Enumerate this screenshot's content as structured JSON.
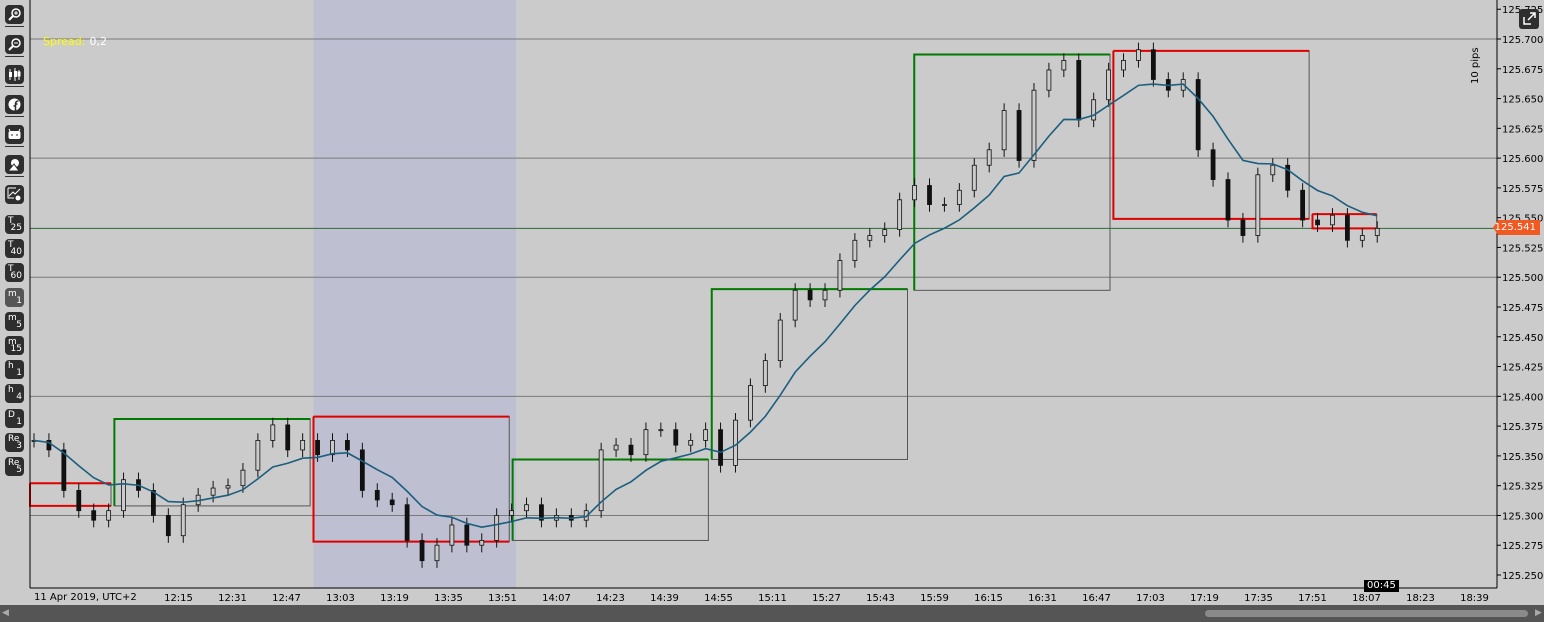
{
  "toolbar": {
    "buttons": [
      {
        "name": "zoom-in-icon"
      },
      {
        "name": "zoom-out-icon"
      },
      {
        "name": "candlestick-icon"
      },
      {
        "name": "facebook-icon"
      },
      {
        "name": "robot-icon"
      },
      {
        "name": "shapes-icon"
      },
      {
        "name": "chart-settings-icon"
      },
      {
        "top": "T",
        "sub": "25"
      },
      {
        "top": "T",
        "sub": "40"
      },
      {
        "top": "T",
        "sub": "60"
      },
      {
        "top": "m",
        "sub": "1",
        "selected": true
      },
      {
        "top": "m",
        "sub": "5"
      },
      {
        "top": "m",
        "sub": "15"
      },
      {
        "top": "h",
        "sub": "1"
      },
      {
        "top": "h",
        "sub": "4"
      },
      {
        "top": "D",
        "sub": "1"
      },
      {
        "top": "Re",
        "sub": "3"
      },
      {
        "top": "Re",
        "sub": "5"
      }
    ]
  },
  "spread": {
    "label": "Spread:",
    "value": "0,2"
  },
  "scale_label": "10 pips",
  "current_price": "125.541",
  "countdown": "00:45",
  "date_label": "11 Apr 2019, UTC+2",
  "colors": {
    "background": "#cbcbcb",
    "bull_box": "#007a00",
    "bear_box": "#e00000",
    "ma": "#1b5e7e",
    "price_tag": "#f05a22",
    "highlight": "#bfbfd2"
  },
  "chart_data": {
    "type": "candlestick",
    "x_start": "11:31",
    "x_end": "18:11",
    "interval": "1m",
    "ylim": [
      125.243,
      125.733
    ],
    "y_ticks": [
      "125.725",
      "125.700",
      "125.675",
      "125.650",
      "125.625",
      "125.600",
      "125.575",
      "125.550",
      "125.525",
      "125.500",
      "125.475",
      "125.450",
      "125.425",
      "125.400",
      "125.375",
      "125.350",
      "125.325",
      "125.300",
      "125.275",
      "125.250"
    ],
    "x_ticks": [
      "12:15",
      "12:31",
      "12:47",
      "13:03",
      "13:19",
      "13:35",
      "13:51",
      "14:07",
      "14:23",
      "14:39",
      "14:55",
      "15:11",
      "15:27",
      "15:43",
      "15:59",
      "16:15",
      "16:31",
      "16:47",
      "17:03",
      "17:19",
      "17:35",
      "17:51",
      "18:07",
      "18:23",
      "18:39"
    ],
    "closes": [
      125.363,
      125.355,
      125.321,
      125.304,
      125.296,
      125.304,
      125.33,
      125.321,
      125.3,
      125.283,
      125.309,
      125.317,
      125.323,
      125.325,
      125.338,
      125.363,
      125.376,
      125.355,
      125.363,
      125.351,
      125.363,
      125.355,
      125.321,
      125.313,
      125.309,
      125.279,
      125.262,
      125.275,
      125.292,
      125.275,
      125.279,
      125.3,
      125.304,
      125.309,
      125.296,
      125.3,
      125.296,
      125.304,
      125.355,
      125.359,
      125.351,
      125.372,
      125.372,
      125.359,
      125.363,
      125.372,
      125.342,
      125.38,
      125.409,
      125.43,
      125.464,
      125.489,
      125.481,
      125.489,
      125.514,
      125.531,
      125.535,
      125.54,
      125.565,
      125.577,
      125.561,
      125.561,
      125.573,
      125.594,
      125.607,
      125.64,
      125.598,
      125.657,
      125.674,
      125.682,
      125.632,
      125.649,
      125.674,
      125.682,
      125.691,
      125.666,
      125.657,
      125.666,
      125.607,
      125.582,
      125.548,
      125.535,
      125.586,
      125.594,
      125.573,
      125.548,
      125.544,
      125.552,
      125.531,
      125.535,
      125.541
    ],
    "gridlines": [
      125.7,
      125.6,
      125.5,
      125.4,
      125.3
    ],
    "highlight": {
      "from": "12:55",
      "to": "13:55"
    },
    "boxes": [
      {
        "dir": "down",
        "from": "11:31",
        "to": "11:55",
        "high": 125.327,
        "low": 125.308
      },
      {
        "dir": "up",
        "from": "11:56",
        "to": "12:54",
        "high": 125.381,
        "low": 125.308
      },
      {
        "dir": "down",
        "from": "12:55",
        "to": "13:53",
        "high": 125.383,
        "low": 125.278
      },
      {
        "dir": "up",
        "from": "13:54",
        "to": "14:52",
        "high": 125.347,
        "low": 125.279
      },
      {
        "dir": "up",
        "from": "14:53",
        "to": "15:51",
        "high": 125.49,
        "low": 125.347
      },
      {
        "dir": "up",
        "from": "15:53",
        "to": "16:51",
        "high": 125.687,
        "low": 125.489
      },
      {
        "dir": "down",
        "from": "16:52",
        "to": "17:50",
        "high": 125.69,
        "low": 125.549
      },
      {
        "dir": "down",
        "from": "17:51",
        "to": "18:10",
        "high": 125.553,
        "low": 125.541
      }
    ]
  }
}
